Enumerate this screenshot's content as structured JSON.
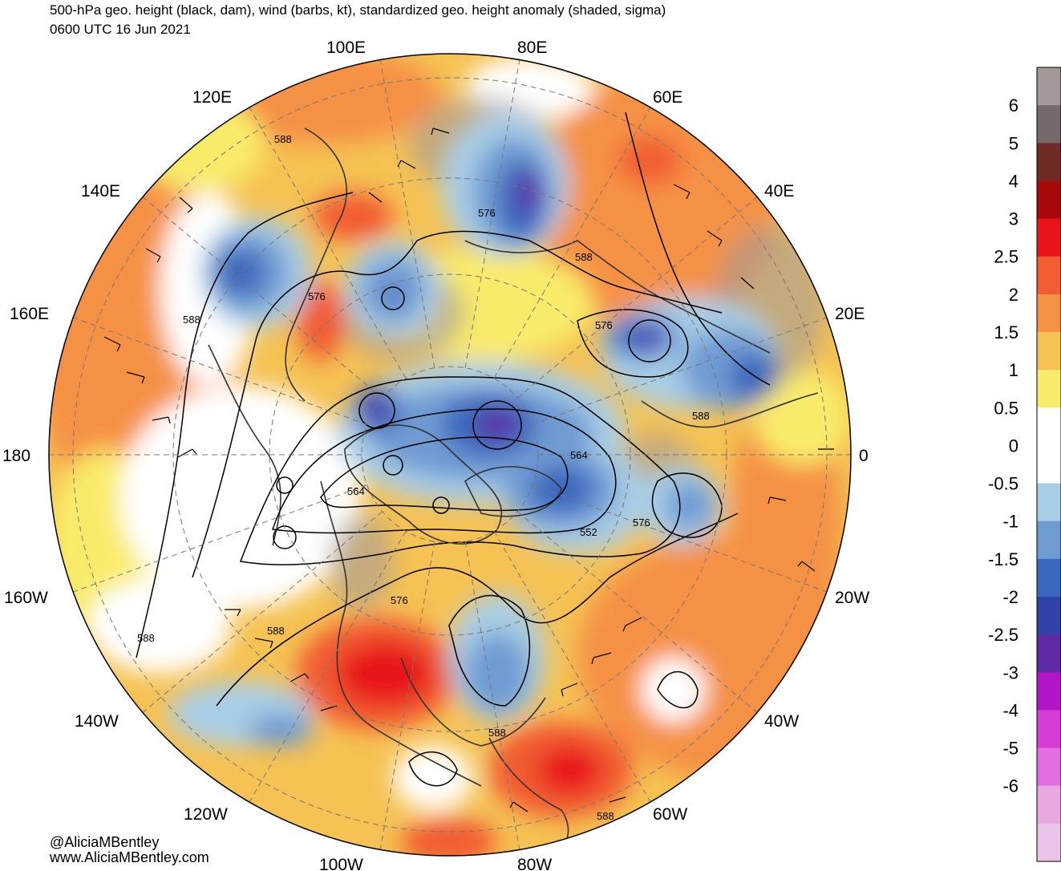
{
  "header": {
    "line1": "500-hPa geo. height (black, dam), wind (barbs, kt), standardized geo. height anomaly (shaded, sigma)",
    "line2": "0600 UTC 16 Jun 2021"
  },
  "credits": {
    "handle": "@AliciaMBentley",
    "site": "www.AliciaMBentley.com"
  },
  "longitude_labels": [
    "100E",
    "80E",
    "120E",
    "60E",
    "140E",
    "40E",
    "160E",
    "20E",
    "180",
    "0",
    "160W",
    "20W",
    "140W",
    "40W",
    "120W",
    "60W",
    "100W",
    "80W"
  ],
  "contour_labels": [
    "588",
    "576",
    "576",
    "588",
    "588",
    "576",
    "588",
    "564",
    "564",
    "552",
    "576",
    "576",
    "588",
    "588",
    "588",
    "588"
  ],
  "colorbar": {
    "labels": [
      "6",
      "5",
      "4",
      "3",
      "2.5",
      "2",
      "1.5",
      "1",
      "0.5",
      "0",
      "-0.5",
      "-1",
      "-1.5",
      "-2",
      "-2.5",
      "-3",
      "-4",
      "-5",
      "-6"
    ],
    "colors": [
      "#a39a98",
      "#746a67",
      "#712b27",
      "#a80a0a",
      "#e8141a",
      "#f15c32",
      "#f59145",
      "#f5c253",
      "#f9eb6b",
      "#ffffff",
      "#ffffff",
      "#a8cde6",
      "#6f9bd3",
      "#3a68be",
      "#2e42a8",
      "#5e2aa4",
      "#b214c8",
      "#d53cd6",
      "#e16fe1",
      "#e8a9e0",
      "#e9c4e8"
    ]
  }
}
